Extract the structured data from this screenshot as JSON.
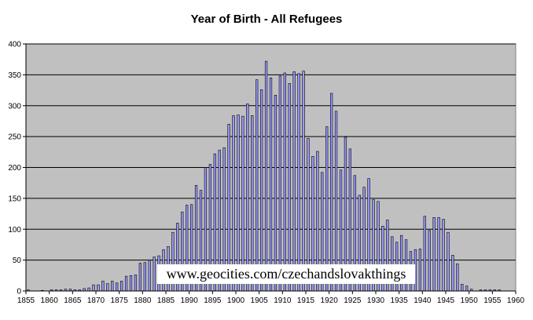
{
  "chart_data": {
    "type": "bar",
    "title": "Year of Birth - All Refugees",
    "xlabel": "",
    "ylabel": "",
    "ylim": [
      0,
      400
    ],
    "yticks": [
      0,
      50,
      100,
      150,
      200,
      250,
      300,
      350,
      400
    ],
    "xlim": [
      1855,
      1960
    ],
    "xticks": [
      1855,
      1860,
      1865,
      1870,
      1875,
      1880,
      1885,
      1890,
      1895,
      1900,
      1905,
      1910,
      1915,
      1920,
      1925,
      1930,
      1935,
      1940,
      1945,
      1950,
      1955,
      1960
    ],
    "grid": true,
    "plot_background": "#c0c0c0",
    "bar_color": "#9999ff",
    "x": [
      1855,
      1856,
      1857,
      1858,
      1859,
      1860,
      1861,
      1862,
      1863,
      1864,
      1865,
      1866,
      1867,
      1868,
      1869,
      1870,
      1871,
      1872,
      1873,
      1874,
      1875,
      1876,
      1877,
      1878,
      1879,
      1880,
      1881,
      1882,
      1883,
      1884,
      1885,
      1886,
      1887,
      1888,
      1889,
      1890,
      1891,
      1892,
      1893,
      1894,
      1895,
      1896,
      1897,
      1898,
      1899,
      1900,
      1901,
      1902,
      1903,
      1904,
      1905,
      1906,
      1907,
      1908,
      1909,
      1910,
      1911,
      1912,
      1913,
      1914,
      1915,
      1916,
      1917,
      1918,
      1919,
      1920,
      1921,
      1922,
      1923,
      1924,
      1925,
      1926,
      1927,
      1928,
      1929,
      1930,
      1931,
      1932,
      1933,
      1934,
      1935,
      1936,
      1937,
      1938,
      1939,
      1940,
      1941,
      1942,
      1943,
      1944,
      1945,
      1946,
      1947,
      1948,
      1949,
      1950,
      1951,
      1952,
      1953,
      1954,
      1955,
      1956,
      1957,
      1958,
      1959
    ],
    "values": [
      2,
      0,
      0,
      1,
      0,
      2,
      2,
      2,
      3,
      3,
      2,
      2,
      4,
      5,
      10,
      10,
      16,
      12,
      16,
      13,
      16,
      24,
      25,
      26,
      45,
      46,
      50,
      55,
      57,
      67,
      72,
      95,
      110,
      128,
      139,
      140,
      171,
      163,
      200,
      205,
      222,
      228,
      232,
      270,
      284,
      285,
      283,
      303,
      284,
      342,
      326,
      372,
      345,
      317,
      348,
      353,
      336,
      355,
      352,
      356,
      247,
      218,
      226,
      192,
      266,
      320,
      291,
      196,
      249,
      230,
      187,
      155,
      168,
      182,
      148,
      145,
      105,
      115,
      88,
      79,
      90,
      83,
      64,
      67,
      68,
      121,
      98,
      119,
      119,
      116,
      95,
      58,
      44,
      11,
      8,
      3,
      0,
      2,
      2,
      2,
      2,
      2,
      0,
      0,
      0
    ]
  },
  "watermark": "www.geocities.com/czechandslovakthings"
}
